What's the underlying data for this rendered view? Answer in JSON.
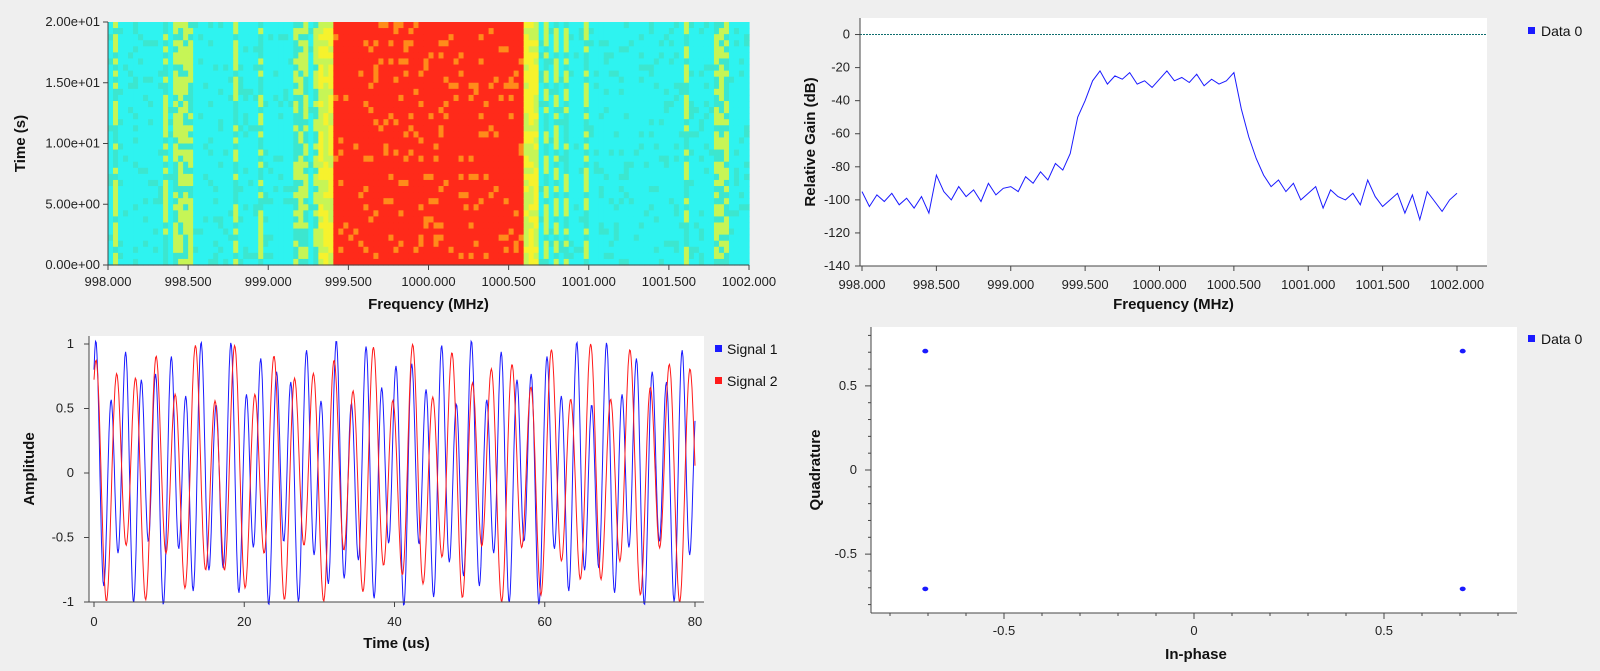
{
  "chart_data": [
    {
      "type": "heatmap",
      "title": "",
      "xlabel": "Frequency (MHz)",
      "ylabel": "Time (s)",
      "xlim": [
        998.0,
        1002.0
      ],
      "ylim": [
        0,
        20
      ],
      "x_ticks": [
        "998.000",
        "998.500",
        "999.000",
        "999.500",
        "1000.000",
        "1000.500",
        "1001.000",
        "1001.500",
        "1002.000"
      ],
      "y_ticks": [
        "0.00e+00",
        "5.00e+00",
        "1.00e+01",
        "1.50e+01",
        "2.00e+01"
      ],
      "y_tick_values": [
        0,
        5,
        10,
        15,
        20
      ],
      "colormap": [
        "#2ef3f0",
        "#3ce6cf",
        "#c6f556",
        "#f6f22d",
        "#ff8c1a",
        "#ff2a1a"
      ],
      "bands": [
        {
          "from": 998.0,
          "to": 999.3,
          "level": 0
        },
        {
          "from": 999.3,
          "to": 999.4,
          "level": 3
        },
        {
          "from": 999.4,
          "to": 1000.6,
          "level": 5
        },
        {
          "from": 1000.6,
          "to": 1000.7,
          "level": 3
        },
        {
          "from": 1000.7,
          "to": 1002.0,
          "level": 0
        }
      ]
    },
    {
      "type": "line",
      "title": "",
      "xlabel": "Frequency (MHz)",
      "ylabel": "Relative Gain (dB)",
      "xlim": [
        998.0,
        1002.0
      ],
      "ylim": [
        -140,
        10
      ],
      "x_ticks": [
        "998.000",
        "998.500",
        "999.000",
        "999.500",
        "1000.000",
        "1000.500",
        "1001.000",
        "1001.500",
        "1002.000"
      ],
      "y_ticks": [
        "0",
        "-20",
        "-40",
        "-60",
        "-80",
        "-100",
        "-120",
        "-140"
      ],
      "y_tick_values": [
        0,
        -20,
        -40,
        -60,
        -80,
        -100,
        -120,
        -140
      ],
      "reference_line": 0,
      "legend": [
        "Data 0"
      ],
      "series": [
        {
          "name": "Data 0",
          "color": "#1a1aff",
          "x": [
            998.0,
            998.05,
            998.1,
            998.15,
            998.2,
            998.25,
            998.3,
            998.35,
            998.4,
            998.45,
            998.5,
            998.55,
            998.6,
            998.65,
            998.7,
            998.75,
            998.8,
            998.85,
            998.9,
            998.95,
            999.0,
            999.05,
            999.1,
            999.15,
            999.2,
            999.25,
            999.3,
            999.35,
            999.4,
            999.45,
            999.5,
            999.55,
            999.6,
            999.65,
            999.7,
            999.75,
            999.8,
            999.85,
            999.9,
            999.95,
            1000.0,
            1000.05,
            1000.1,
            1000.15,
            1000.2,
            1000.25,
            1000.3,
            1000.35,
            1000.4,
            1000.45,
            1000.5,
            1000.55,
            1000.6,
            1000.65,
            1000.7,
            1000.75,
            1000.8,
            1000.85,
            1000.9,
            1000.95,
            1001.0,
            1001.05,
            1001.1,
            1001.15,
            1001.2,
            1001.25,
            1001.3,
            1001.35,
            1001.4,
            1001.45,
            1001.5,
            1001.55,
            1001.6,
            1001.65,
            1001.7,
            1001.75,
            1001.8,
            1001.85,
            1001.9,
            1001.95,
            1002.0
          ],
          "y": [
            -95,
            -104,
            -97,
            -101,
            -96,
            -103,
            -99,
            -105,
            -98,
            -108,
            -85,
            -95,
            -100,
            -92,
            -98,
            -94,
            -101,
            -90,
            -97,
            -93,
            -92,
            -95,
            -86,
            -90,
            -83,
            -88,
            -78,
            -82,
            -72,
            -50,
            -40,
            -28,
            -22,
            -30,
            -25,
            -27,
            -23,
            -30,
            -28,
            -32,
            -27,
            -22,
            -28,
            -26,
            -29,
            -24,
            -31,
            -27,
            -30,
            -28,
            -23,
            -45,
            -62,
            -75,
            -85,
            -92,
            -88,
            -95,
            -90,
            -100,
            -96,
            -92,
            -105,
            -94,
            -98,
            -100,
            -96,
            -103,
            -88,
            -98,
            -104,
            -100,
            -96,
            -108,
            -97,
            -112,
            -95,
            -101,
            -107,
            -100,
            -96
          ]
        }
      ]
    },
    {
      "type": "line",
      "title": "",
      "xlabel": "Time (us)",
      "ylabel": "Amplitude",
      "xlim": [
        0,
        80
      ],
      "ylim": [
        -1,
        1
      ],
      "x_ticks": [
        "0",
        "20",
        "40",
        "60",
        "80"
      ],
      "x_tick_values": [
        0,
        20,
        40,
        60,
        80
      ],
      "y_ticks": [
        "1",
        "0.5",
        "0",
        "-0.5",
        "-1"
      ],
      "y_tick_values": [
        1,
        0.5,
        0,
        -0.5,
        -1
      ],
      "legend": [
        "Signal 1",
        "Signal 2"
      ],
      "series": [
        {
          "name": "Signal 1",
          "color": "#1a1aff",
          "frequency_mhz": 0.5,
          "harmonic_mhz": 0.28,
          "harmonic_amplitude": 0.25,
          "phase": 0.8
        },
        {
          "name": "Signal 2",
          "color": "#ff1a1a",
          "frequency_mhz": 0.38,
          "harmonic_mhz": 0.21,
          "harmonic_amplitude": 0.22,
          "phase": 0.8
        }
      ]
    },
    {
      "type": "scatter",
      "title": "",
      "xlabel": "In-phase",
      "ylabel": "Quadrature",
      "xlim": [
        -0.85,
        0.85
      ],
      "ylim": [
        -0.85,
        0.85
      ],
      "x_ticks": [
        "-0.5",
        "0",
        "0.5"
      ],
      "x_tick_values": [
        -0.5,
        0,
        0.5
      ],
      "y_ticks": [
        "0.5",
        "0",
        "-0.5"
      ],
      "y_tick_values": [
        0.5,
        0,
        -0.5
      ],
      "legend": [
        "Data 0"
      ],
      "series": [
        {
          "name": "Data 0",
          "color": "#1a1aff",
          "points": [
            [
              -0.707,
              0.707
            ],
            [
              0.707,
              0.707
            ],
            [
              -0.707,
              -0.707
            ],
            [
              0.707,
              -0.707
            ]
          ]
        }
      ]
    }
  ]
}
